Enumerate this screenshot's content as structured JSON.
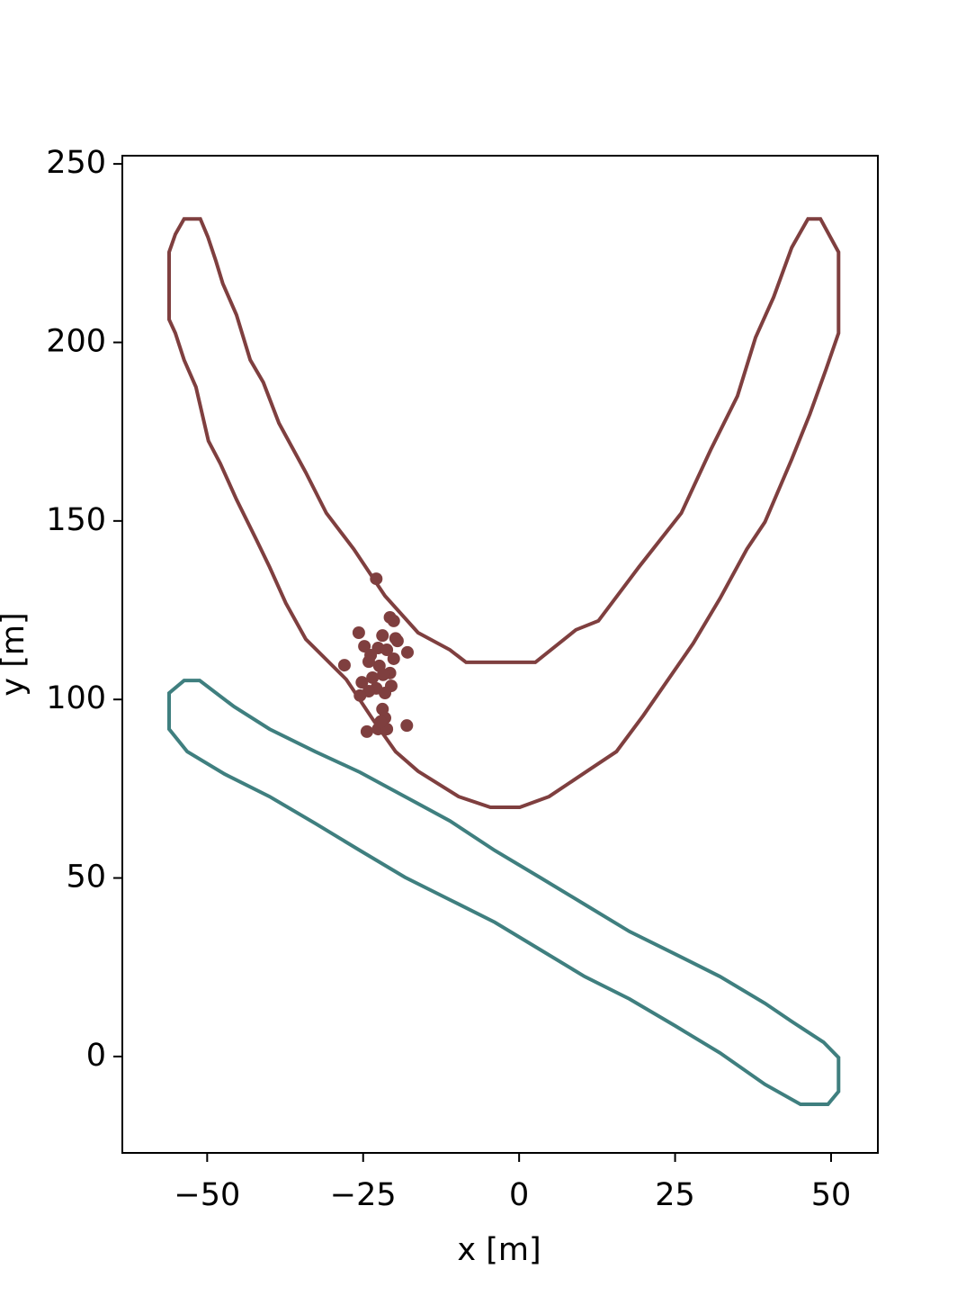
{
  "chart_data": {
    "type": "scatter",
    "xlabel": "x [m]",
    "ylabel": "y [m]",
    "xlim": [
      -63.6,
      57.5
    ],
    "ylim": [
      -27,
      252.3
    ],
    "xticks": [
      {
        "value": -50,
        "label": "−50"
      },
      {
        "value": -25,
        "label": "−25"
      },
      0,
      25,
      50
    ],
    "yticks": [
      0,
      50,
      100,
      150,
      200,
      250
    ],
    "grid": false,
    "contours": [
      {
        "color": "#7f3f3f",
        "x": [
          -53.7,
          -51.1,
          -49.9,
          -48.6,
          -47.5,
          -45.3,
          -43.1,
          -41.0,
          -38.5,
          -34.2,
          -30.9,
          -26.5,
          -21.5,
          -16.2,
          -11.1,
          -8.5,
          2.6,
          9.1,
          12.7,
          19.2,
          26.0,
          30.7,
          35.0,
          37.9,
          40.8,
          43.7,
          46.3,
          48.3,
          51.2,
          51.2,
          49.2,
          46.6,
          43.7,
          39.4,
          36.5,
          32.2,
          27.9,
          19.9,
          15.6,
          11.3,
          4.8,
          0.1,
          -4.6,
          -9.7,
          -16.2,
          -19.8,
          -23.4,
          -27.7,
          -34.2,
          -37.4,
          -40.0,
          -42.1,
          -45.3,
          -47.9,
          -49.8,
          -51.8,
          -53.7,
          -55.1,
          -56.1,
          -56.1,
          -55.1
        ],
        "y": [
          234.6,
          234.6,
          229.6,
          222.8,
          216.5,
          207.7,
          195.1,
          188.8,
          177.4,
          163.6,
          152.2,
          142.1,
          129.0,
          118.7,
          113.9,
          110.4,
          110.4,
          119.5,
          122.0,
          137.1,
          152.2,
          169.9,
          185.0,
          201.4,
          212.7,
          226.6,
          234.6,
          234.6,
          225.3,
          202.6,
          192.5,
          179.9,
          167.3,
          149.7,
          142.1,
          128.3,
          115.7,
          95.5,
          85.4,
          80.4,
          72.8,
          69.8,
          69.8,
          72.8,
          79.9,
          85.4,
          94.3,
          105.6,
          116.9,
          127.0,
          137.1,
          144.7,
          156.0,
          166.1,
          172.4,
          187.5,
          195.1,
          202.6,
          206.4,
          225.3,
          230.3
        ]
      },
      {
        "color": "#3f7f7f",
        "x": [
          -53.7,
          -51.2,
          -45.7,
          -40.0,
          -32.7,
          -25.5,
          -18.3,
          -11.1,
          -3.9,
          3.3,
          10.5,
          17.7,
          25.0,
          32.2,
          39.4,
          43.7,
          48.8,
          51.2,
          51.2,
          49.5,
          45.1,
          39.4,
          32.2,
          25.0,
          17.7,
          10.5,
          3.3,
          -3.9,
          -11.1,
          -18.3,
          -25.5,
          -32.7,
          -40.0,
          -47.2,
          -53.2,
          -56.1,
          -56.1
        ],
        "y": [
          105.3,
          105.3,
          98.0,
          91.7,
          85.4,
          79.6,
          72.8,
          66.0,
          57.7,
          50.2,
          42.6,
          35.0,
          28.7,
          22.4,
          14.9,
          9.8,
          4.0,
          -0.3,
          -9.8,
          -13.4,
          -13.4,
          -7.8,
          1.0,
          8.6,
          16.1,
          22.4,
          30.0,
          37.6,
          43.9,
          50.2,
          57.7,
          65.3,
          72.8,
          79.1,
          85.4,
          91.7,
          101.8
        ]
      }
    ],
    "points": {
      "color": "#7f3f3f",
      "x": [
        -22.9,
        -20.7,
        -25.7,
        -20.1,
        -21.9,
        -19.5,
        -24.8,
        -22.6,
        -21.2,
        -17.9,
        -23.8,
        -20.1,
        -28.0,
        -22.4,
        -24.1,
        -20.7,
        -23.5,
        -21.8,
        -25.2,
        -20.5,
        -22.9,
        -24.1,
        -25.5,
        -21.5,
        -21.9,
        -21.5,
        -18.0,
        -24.4,
        -22.6,
        -21.2,
        -22.2,
        -19.8
      ],
      "y": [
        133.8,
        123.0,
        118.7,
        122.0,
        117.9,
        116.4,
        114.9,
        114.4,
        113.9,
        113.2,
        112.4,
        111.4,
        109.6,
        109.4,
        110.6,
        107.4,
        106.1,
        106.9,
        104.8,
        103.8,
        103.1,
        102.3,
        101.1,
        101.8,
        97.3,
        94.8,
        92.7,
        91.0,
        91.7,
        91.7,
        93.8,
        117.1
      ]
    }
  }
}
